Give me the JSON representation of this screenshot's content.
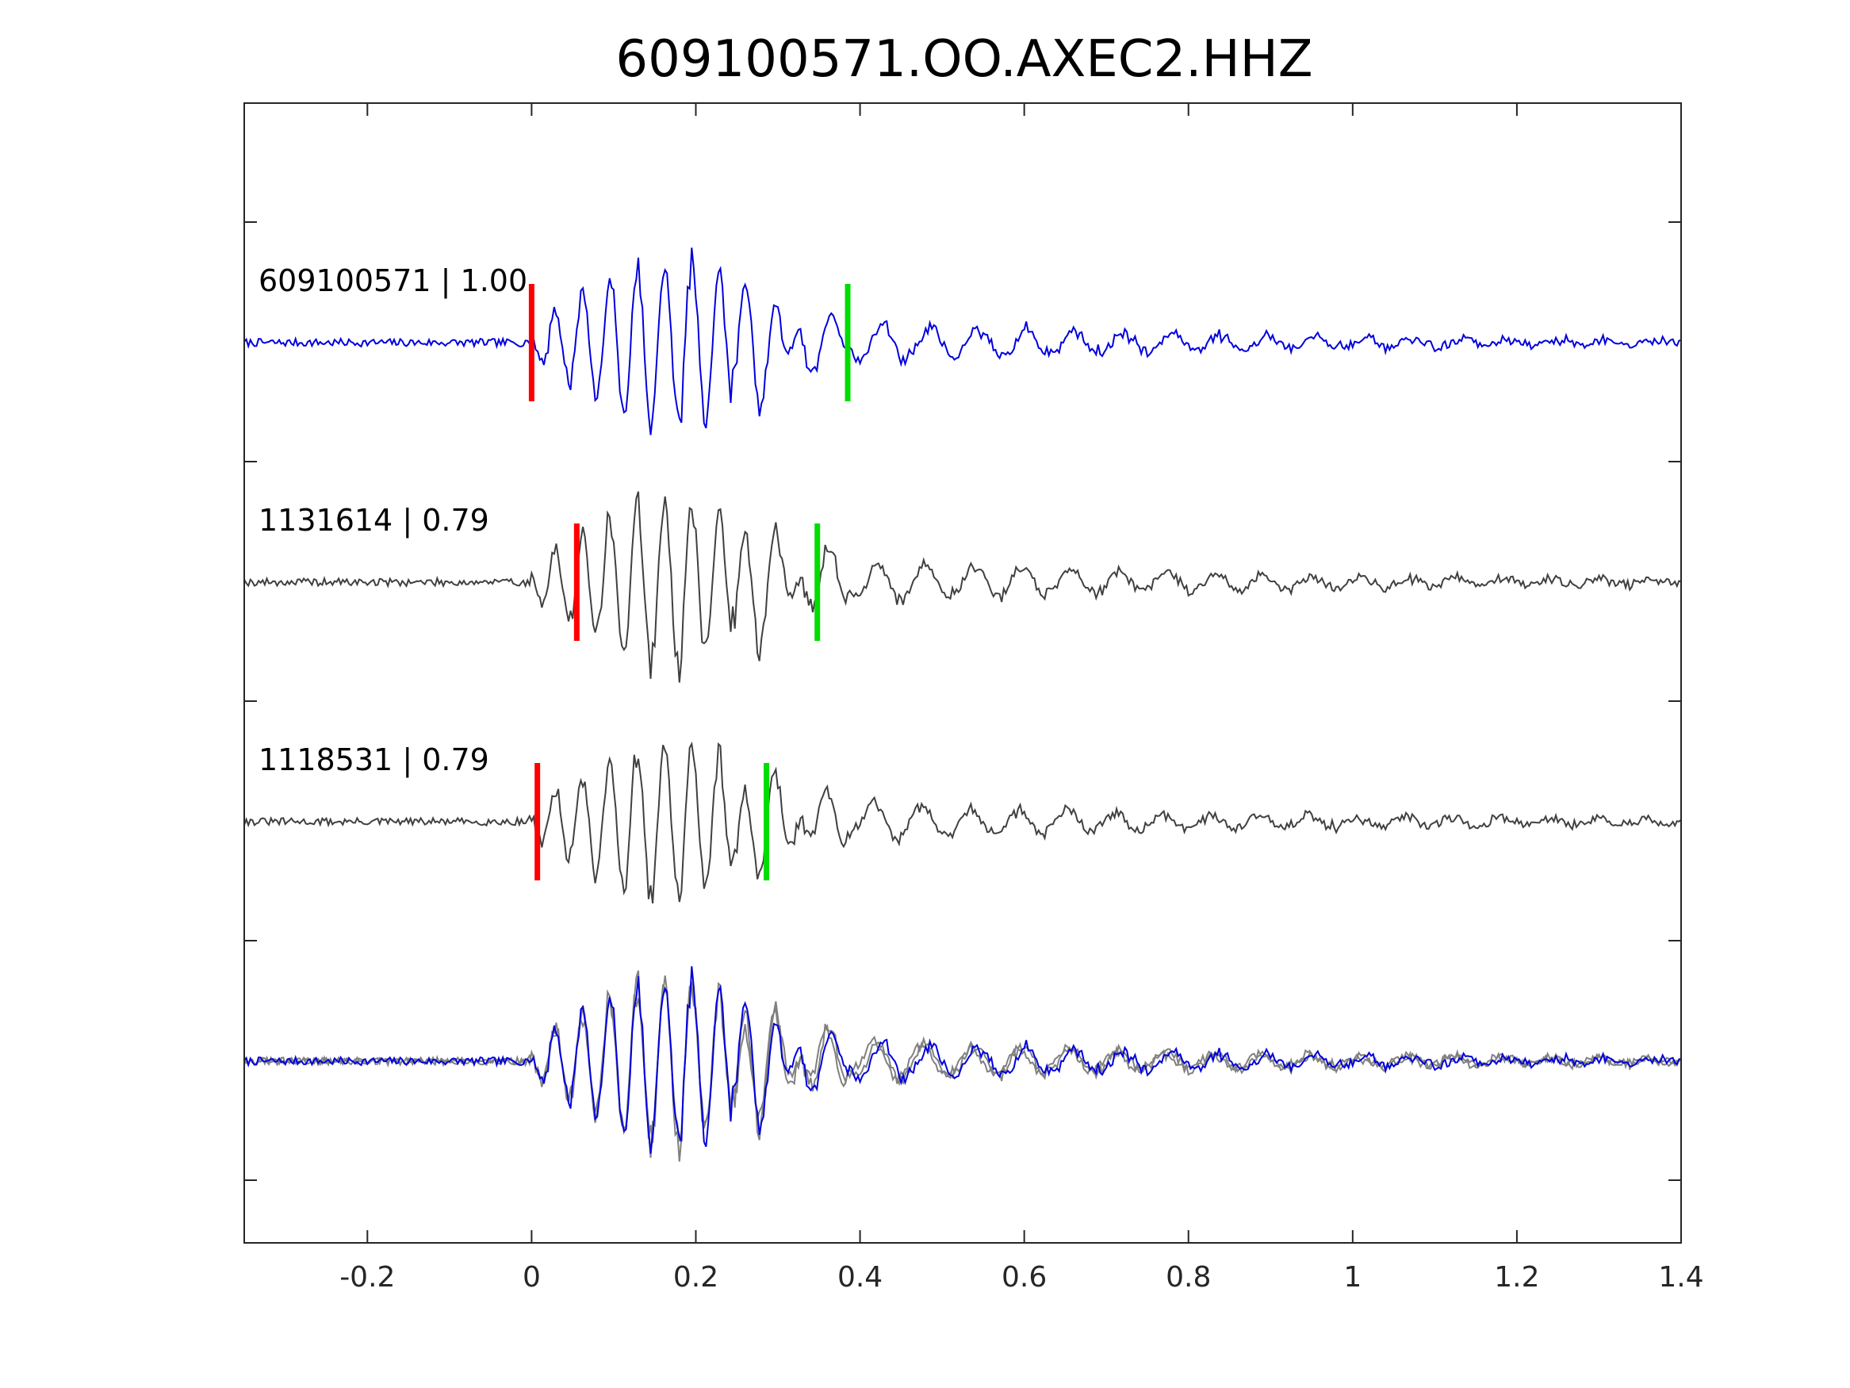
{
  "chart_data": {
    "type": "line",
    "title": "609100571.OO.AXEC2.HHZ",
    "xlabel": "",
    "ylabel": "",
    "xlim": [
      -0.35,
      1.4
    ],
    "xticks": [
      "-0.2",
      "0",
      "0.2",
      "0.4",
      "0.6",
      "0.8",
      "1",
      "1.2",
      "1.4"
    ],
    "xtick_values": [
      -0.2,
      0,
      0.2,
      0.4,
      0.6,
      0.8,
      1.0,
      1.2,
      1.4
    ],
    "grid": false,
    "colors": {
      "primary": "#0000dd",
      "secondary": "#404040",
      "overlay_secondary": "#808080",
      "p_pick": "#ff0000",
      "s_pick": "#00dd00"
    },
    "traces": [
      {
        "label": "609100571 | 1.00",
        "color": "#0000dd",
        "p_pick": 0.0,
        "s_pick": 0.385,
        "amplitude": 1.0,
        "seed": 7
      },
      {
        "label": "1131614 | 0.79",
        "color": "#404040",
        "p_pick": 0.055,
        "s_pick": 0.348,
        "amplitude": 1.0,
        "seed": 19
      },
      {
        "label": "1118531 | 0.79",
        "color": "#404040",
        "p_pick": 0.007,
        "s_pick": 0.286,
        "amplitude": 0.95,
        "seed": 31
      }
    ],
    "overlay": {
      "label": "",
      "series_colors": [
        "#808080",
        "#808080",
        "#0000dd"
      ]
    }
  }
}
